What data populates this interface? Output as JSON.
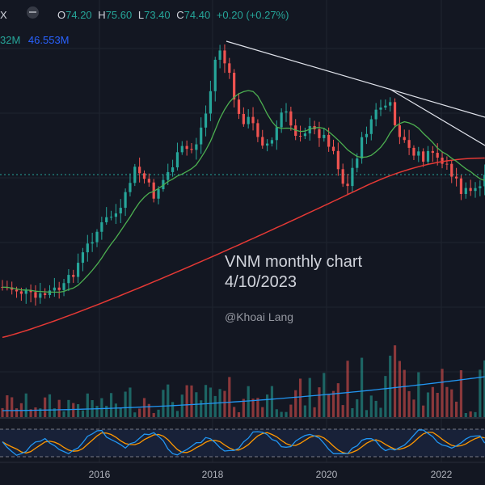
{
  "header": {
    "symbol_tail": "X",
    "open_label": "O",
    "open": "74.20",
    "high_label": "H",
    "high": "75.60",
    "low_label": "L",
    "low": "73.40",
    "close_label": "C",
    "close": "74.40",
    "change": "+0.20 (+0.27%)",
    "eye_icon": "eye-off-icon"
  },
  "volume": {
    "value": "32M",
    "ma": "46.553M",
    "value_color": "#26a69a",
    "ma_color": "#2962ff"
  },
  "annotation": {
    "line1": "VNM monthly chart",
    "line2": "4/10/2023",
    "watermark": "@Khoai Lang"
  },
  "x_axis": {
    "labels": [
      "2016",
      "2018",
      "2020",
      "2022"
    ]
  },
  "colors": {
    "up": "#26a69a",
    "down": "#ef5350",
    "ma_fast": "#4caf50",
    "ma_slow": "#e53935",
    "trendline": "#e0e3eb",
    "rsi": "#2196f3",
    "rsi_signal": "#ff9800",
    "background": "#131722"
  },
  "chart_data": {
    "type": "candlestick",
    "interval": "monthly",
    "overlays": [
      "fast moving average (green)",
      "slow moving average (red)",
      "two trendlines"
    ],
    "panes": [
      "price",
      "volume",
      "oscillator"
    ],
    "x_ticks": [
      "2016",
      "2018",
      "2020",
      "2022"
    ]
  }
}
